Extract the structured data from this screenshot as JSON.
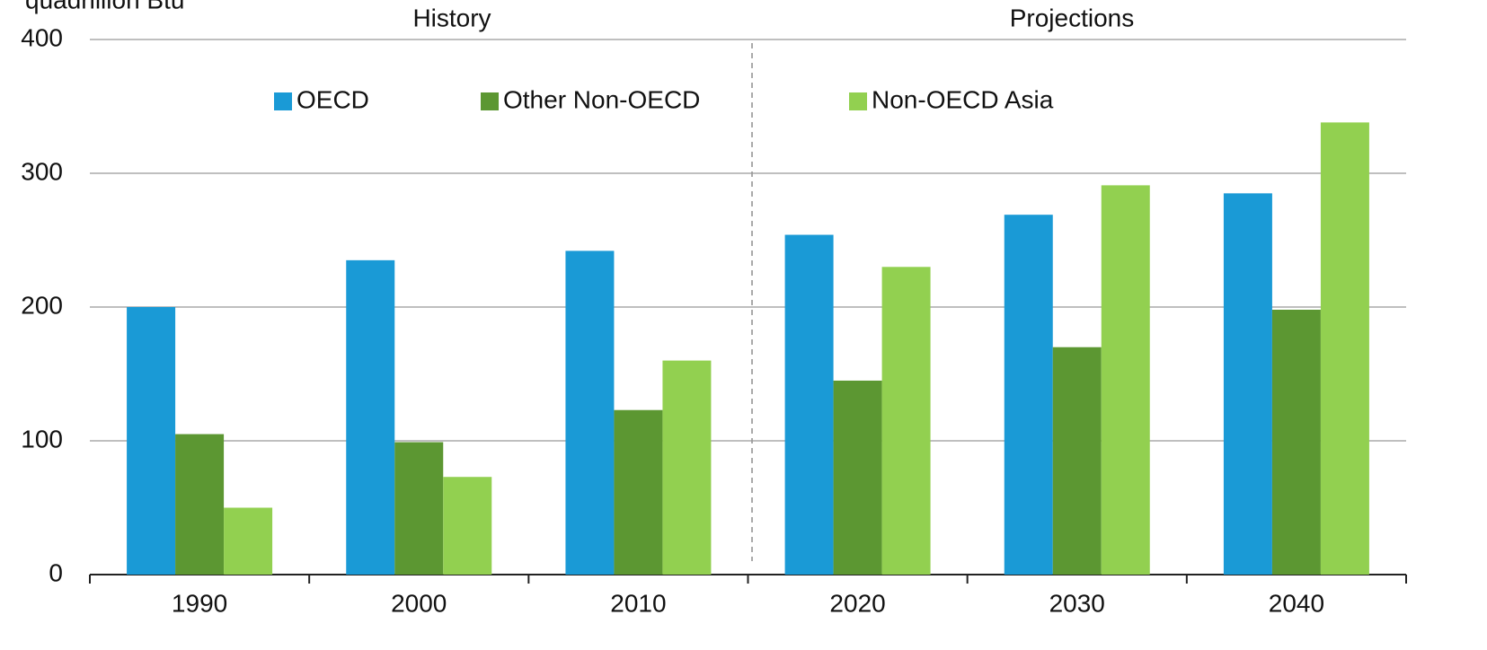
{
  "chart_data": {
    "type": "bar",
    "y_axis_label": "quadrillion Btu",
    "annotations": [
      "History",
      "Projections"
    ],
    "categories": [
      "1990",
      "2000",
      "2010",
      "2020",
      "2030",
      "2040"
    ],
    "series": [
      {
        "name": "OECD",
        "color": "#1a9ad6",
        "values": [
          200,
          235,
          242,
          254,
          269,
          285
        ]
      },
      {
        "name": "Other Non-OECD",
        "color": "#5c9732",
        "values": [
          105,
          99,
          123,
          145,
          170,
          198
        ]
      },
      {
        "name": "Non-OECD Asia",
        "color": "#92d050",
        "values": [
          50,
          73,
          160,
          230,
          291,
          338
        ]
      }
    ],
    "ylim": [
      0,
      400
    ],
    "yticks": [
      0,
      100,
      200,
      300,
      400
    ],
    "grid": true,
    "legend": "top"
  }
}
